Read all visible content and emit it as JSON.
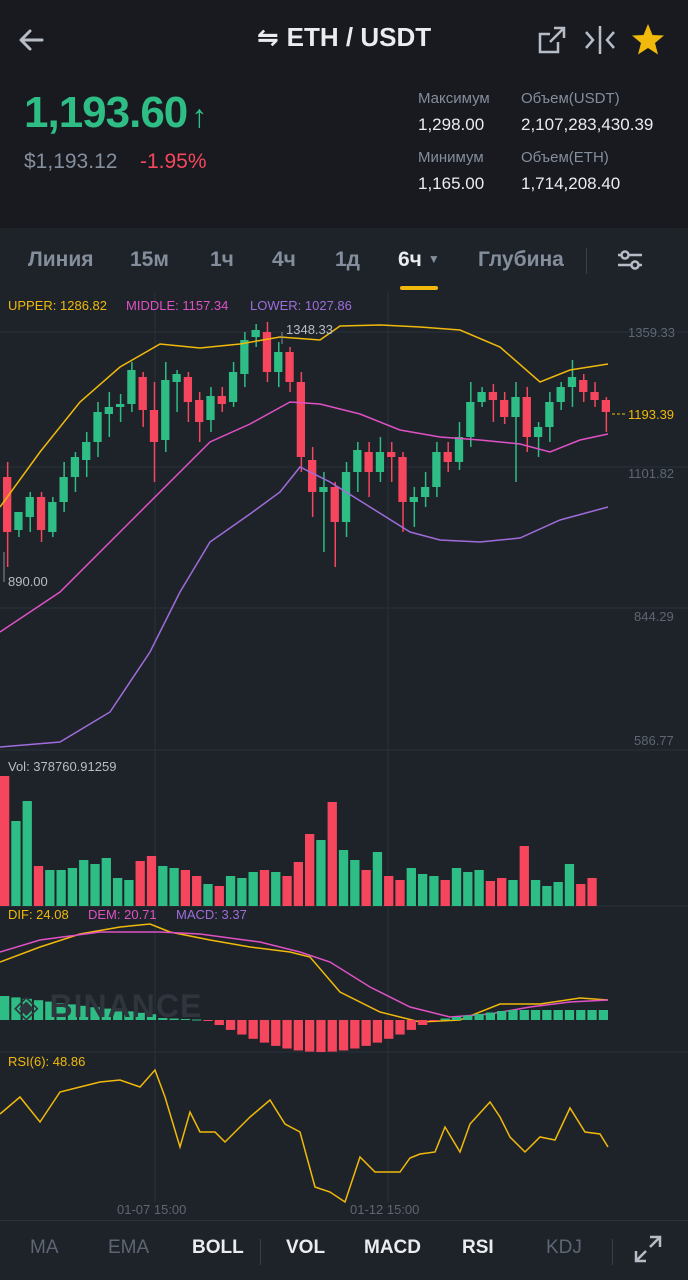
{
  "header": {
    "pair": "ETH / USDT",
    "price": "1,193.60",
    "usd_price": "$1,193.12",
    "change": "-1.95%",
    "stats": {
      "high_label": "Максимум",
      "high_value": "1,298.00",
      "low_label": "Минимум",
      "low_value": "1,165.00",
      "vol_usdt_label": "Объем(USDT)",
      "vol_usdt_value": "2,107,283,430.39",
      "vol_eth_label": "Объем(ETH)",
      "vol_eth_value": "1,714,208.40"
    }
  },
  "tabs": {
    "line": "Линия",
    "m15": "15м",
    "h1": "1ч",
    "h4": "4ч",
    "d1": "1д",
    "h6": "6ч",
    "depth": "Глубина"
  },
  "chart": {
    "boll_upper": "UPPER: 1286.82",
    "boll_middle": "MIDDLE: 1157.34",
    "boll_lower": "LOWER: 1027.86",
    "high_mark": "1348.33",
    "low_mark": "890.00",
    "y_labels": [
      "1359.33",
      "1101.82",
      "844.29",
      "586.77"
    ],
    "current_price": "1193.39",
    "watermark": "BINANCE",
    "vol_label": "Vol: 378760.91259",
    "dif_label": "DIF: 24.08",
    "dem_label": "DEM: 20.71",
    "macd_label": "MACD: 3.37",
    "rsi_label": "RSI(6): 48.86",
    "x_labels": [
      "01-07 15:00",
      "01-12 15:00"
    ]
  },
  "colors": {
    "up": "#2ebd85",
    "down": "#f6465d",
    "upper": "#f0b90b",
    "middle": "#e051c5",
    "lower": "#9f6cdc",
    "accent": "#f0b90b"
  },
  "bottom": {
    "ma": "MA",
    "ema": "EMA",
    "boll": "BOLL",
    "vol": "VOL",
    "macd": "MACD",
    "rsi": "RSI",
    "kdj": "KDJ"
  }
}
